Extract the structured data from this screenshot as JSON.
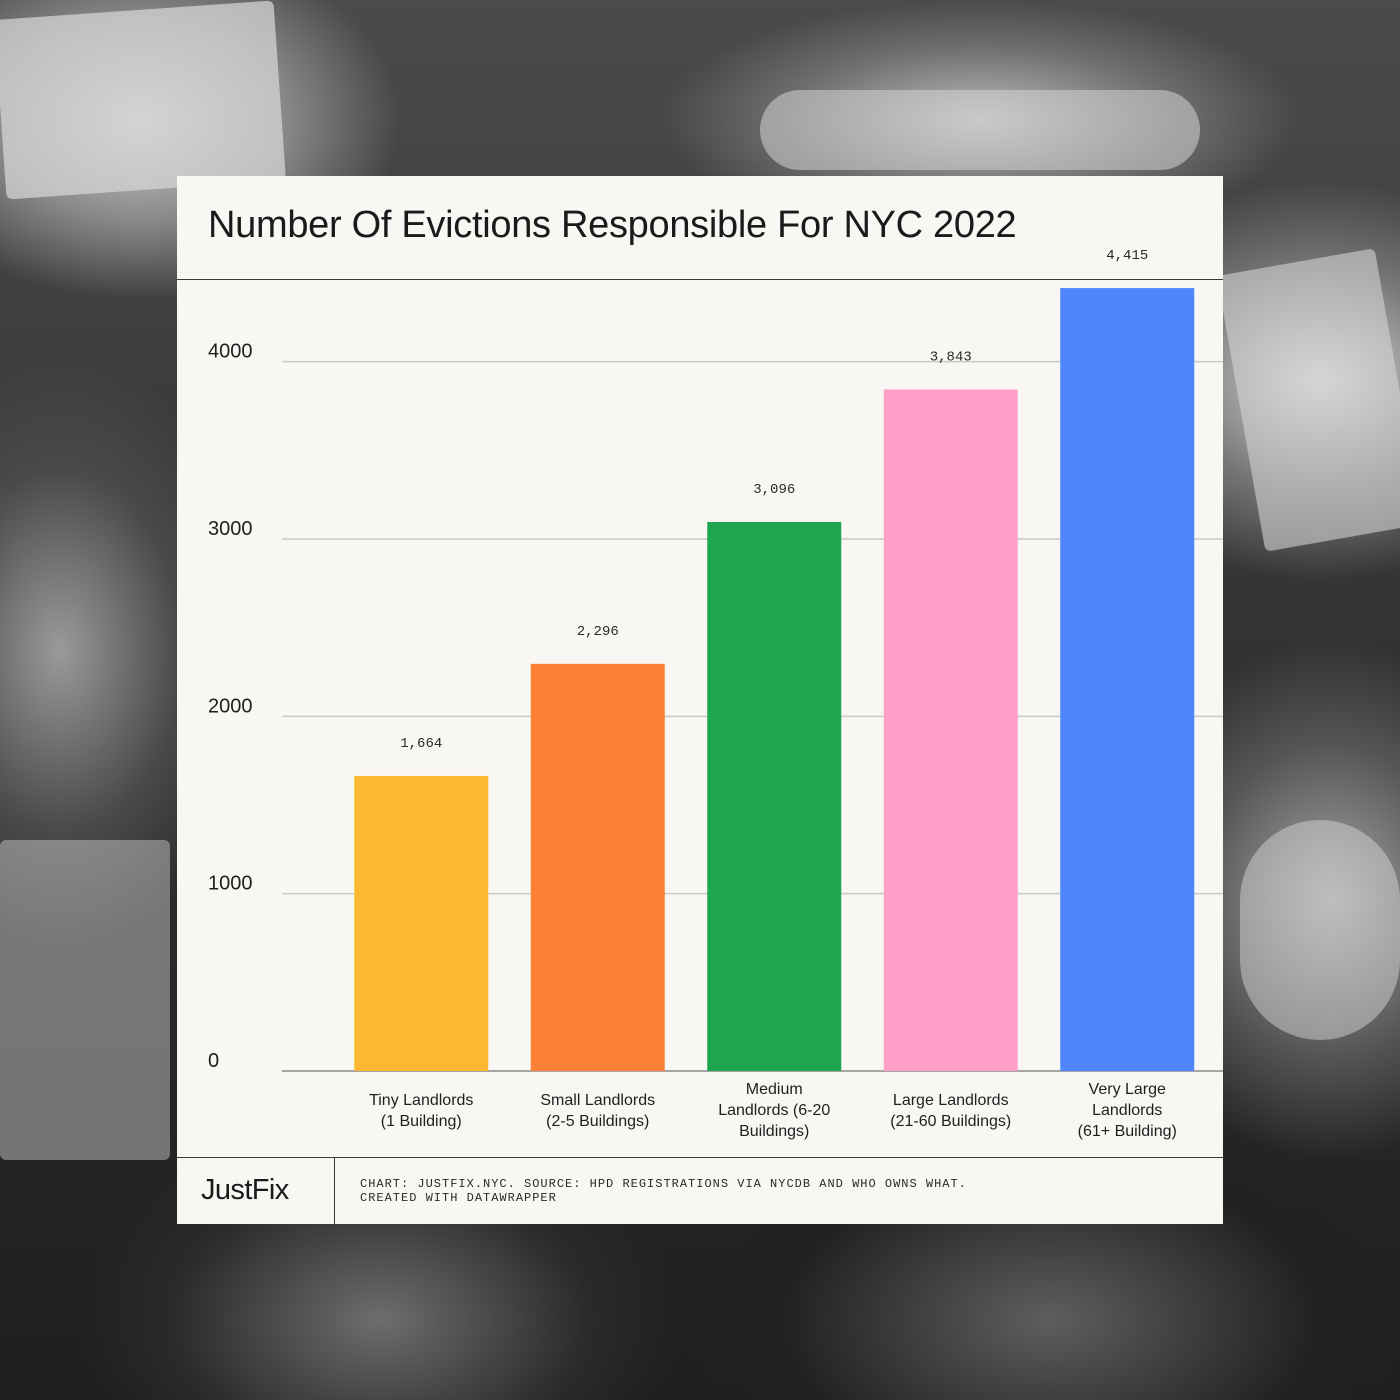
{
  "title": "Number Of Evictions Responsible For NYC 2022",
  "logo": "JustFix",
  "credit_line1": "CHART: JUSTFIX.NYC. SOURCE: HPD REGISTRATIONS VIA NYCDB AND WHO OWNS WHAT.",
  "credit_line2": "CREATED WITH DATAWRAPPER",
  "chart_data": {
    "type": "bar",
    "title": "Number Of Evictions Responsible For NYC 2022",
    "categories": [
      [
        "Tiny Landlords",
        "(1 Building)"
      ],
      [
        "Small Landlords",
        "(2-5 Buildings)"
      ],
      [
        "Medium",
        "Landlords (6-20",
        "Buildings)"
      ],
      [
        "Large Landlords",
        "(21-60 Buildings)"
      ],
      [
        "Very Large",
        "Landlords",
        "(61+  Building)"
      ]
    ],
    "values": [
      1664,
      2296,
      3096,
      3843,
      4415
    ],
    "value_labels": [
      "1,664",
      "2,296",
      "3,096",
      "3,843",
      "4,415"
    ],
    "colors": [
      "#fdb833",
      "#fd8039",
      "#1ea64f",
      "#ffa0c8",
      "#4f86fd"
    ],
    "yticks": [
      0,
      1000,
      2000,
      3000,
      4000
    ],
    "ylim": [
      0,
      4500
    ],
    "grid": true,
    "legend": "none",
    "xlabel": "",
    "ylabel": ""
  }
}
